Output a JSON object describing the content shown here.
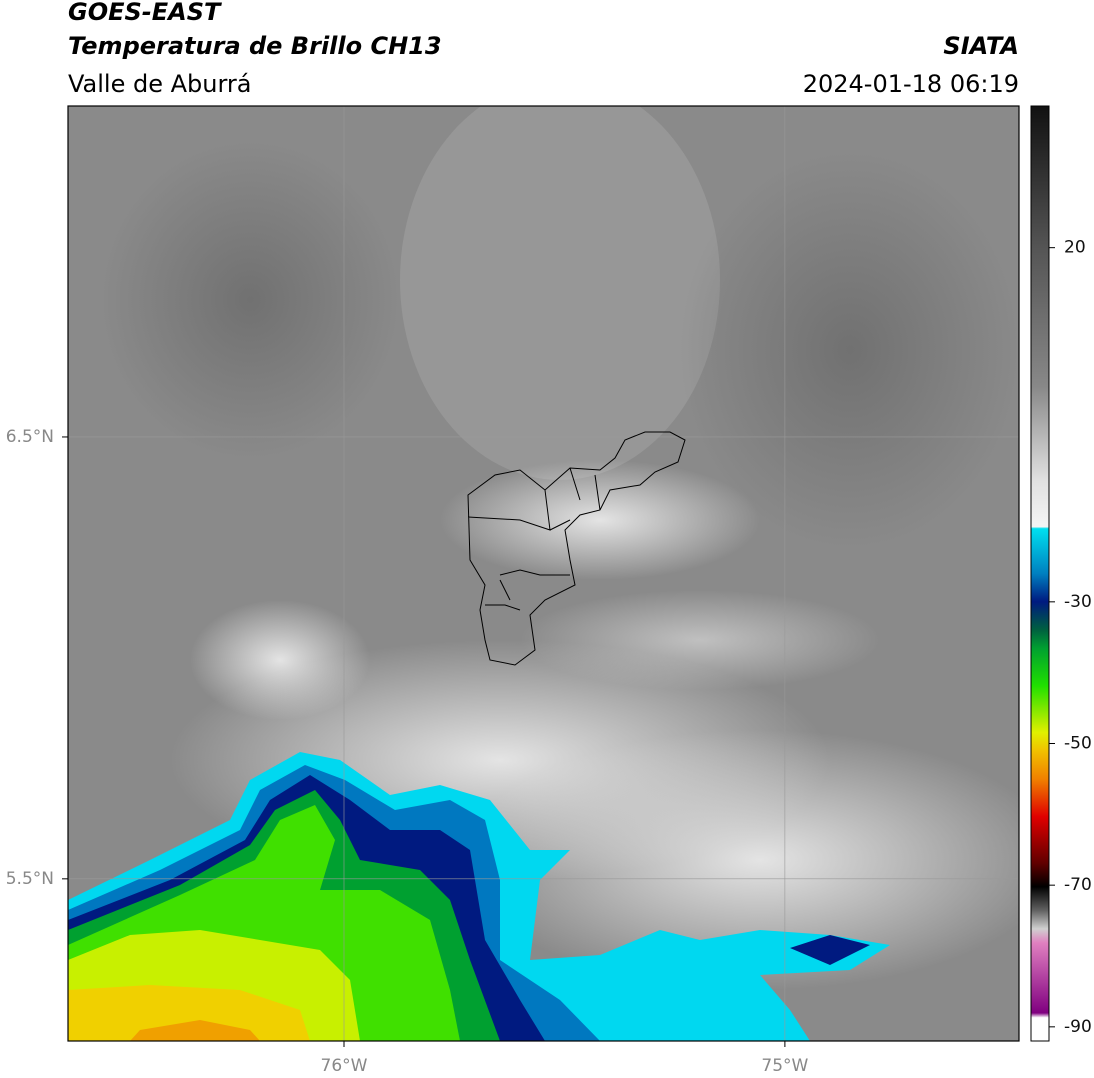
{
  "header": {
    "title_1": "GOES-EAST",
    "title_2": "Temperatura de Brillo CH13",
    "subtitle": "Valle de Aburrá",
    "source": "SIATA",
    "datetime": "2024-01-18 06:19"
  },
  "map": {
    "xlim": [
      -76.626,
      -74.469
    ],
    "ylim": [
      5.133,
      7.249
    ],
    "xticks": [
      {
        "value": -76,
        "label": "76°W"
      },
      {
        "value": -75,
        "label": "75°W"
      }
    ],
    "yticks": [
      {
        "value": 6.5,
        "label": "6.5°N"
      },
      {
        "value": 5.5,
        "label": "5.5°N"
      }
    ],
    "grid": true
  },
  "colorbar": {
    "lim": [
      -92,
      40
    ],
    "ticks": [
      20,
      -30,
      -50,
      -70,
      -90
    ]
  }
}
